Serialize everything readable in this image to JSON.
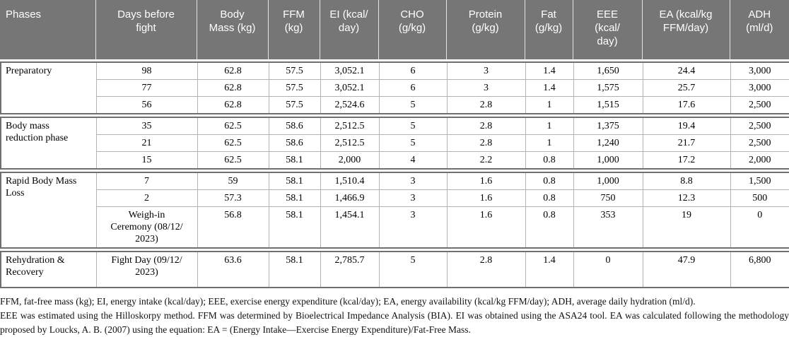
{
  "table": {
    "columns": [
      "Phases",
      "Days before\nfight",
      "Body\nMass (kg)",
      "FFM\n(kg)",
      "EI (kcal/\nday)",
      "CHO\n(g/kg)",
      "Protein\n(g/kg)",
      "Fat\n(g/kg)",
      "EEE\n(kcal/\nday)",
      "EA (kcal/kg\nFFM/day)",
      "ADH\n(ml/d)"
    ],
    "groups": [
      {
        "phase": "Preparatory",
        "rows": [
          [
            "98",
            "62.8",
            "57.5",
            "3,052.1",
            "6",
            "3",
            "1.4",
            "1,650",
            "24.4",
            "3,000"
          ],
          [
            "77",
            "62.8",
            "57.5",
            "3,052.1",
            "6",
            "3",
            "1.4",
            "1,575",
            "25.7",
            "3,000"
          ],
          [
            "56",
            "62.8",
            "57.5",
            "2,524.6",
            "5",
            "2.8",
            "1",
            "1,515",
            "17.6",
            "2,500"
          ]
        ]
      },
      {
        "phase": "Body mass\nreduction phase",
        "rows": [
          [
            "35",
            "62.5",
            "58.6",
            "2,512.5",
            "5",
            "2.8",
            "1",
            "1,375",
            "19.4",
            "2,500"
          ],
          [
            "21",
            "62.5",
            "58.6",
            "2,512.5",
            "5",
            "2.8",
            "1",
            "1,240",
            "21.7",
            "2,500"
          ],
          [
            "15",
            "62.5",
            "58.1",
            "2,000",
            "4",
            "2.2",
            "0.8",
            "1,000",
            "17.2",
            "2,000"
          ]
        ]
      },
      {
        "phase": "Rapid Body Mass\nLoss",
        "rows": [
          [
            "7",
            "59",
            "58.1",
            "1,510.4",
            "3",
            "1.6",
            "0.8",
            "1,000",
            "8.8",
            "1,500"
          ],
          [
            "2",
            "57.3",
            "58.1",
            "1,466.9",
            "3",
            "1.6",
            "0.8",
            "750",
            "12.3",
            "500"
          ],
          [
            "Weigh-in\nCeremony (08/12/\n2023)",
            "56.8",
            "58.1",
            "1,454.1",
            "3",
            "1.6",
            "0.8",
            "353",
            "19",
            "0"
          ]
        ]
      },
      {
        "phase": "Rehydration &\nRecovery",
        "rows": [
          [
            "Fight Day (09/12/\n2023)",
            "63.6",
            "58.1",
            "2,785.7",
            "5",
            "2.8",
            "1.4",
            "0",
            "47.9",
            "6,800"
          ]
        ]
      }
    ],
    "footnotes": {
      "line1": "FFM, fat-free mass (kg); EI, energy intake (kcal/day); EEE, exercise energy expenditure (kcal/day); EA, energy availability (kcal/kg FFM/day); ADH, average daily hydration (ml/d).",
      "line2": "EEE was estimated using the Hilloskorpy method. FFM was determined by Bioelectrical Impedance Analysis (BIA). EI was obtained using the ASA24 tool. EA was calculated following the methodology proposed by Loucks, A. B. (2007) using the equation: EA = (Energy Intake—Exercise Energy Expenditure)/Fat-Free Mass."
    },
    "colors": {
      "header_bg": "#767676",
      "header_text": "#ffffff",
      "grid_line": "#b3b3b3",
      "group_border": "#6f6f6f"
    }
  }
}
